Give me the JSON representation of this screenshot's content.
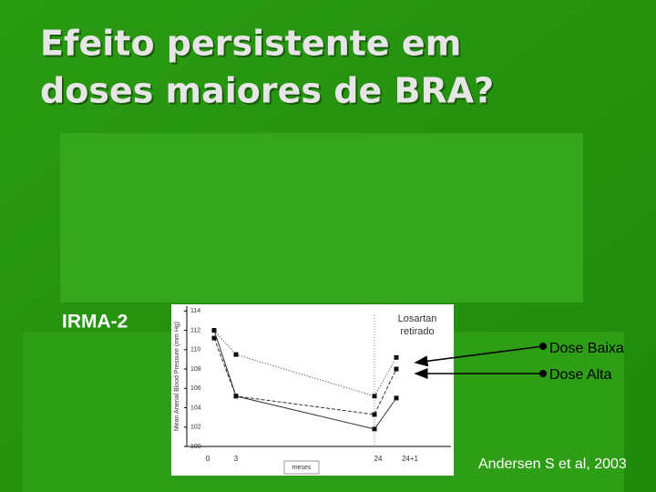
{
  "title_line1": "Efeito persistente em",
  "title_line2": "doses maiores de BRA?",
  "study_label": "IRMA-2",
  "legend": [
    "Dose Baixa",
    "Dose Alta"
  ],
  "citation": "Andersen S et al, 2003",
  "chart_data": {
    "type": "line",
    "y_label": "Mean Arterial Blood Pressure (mm Hg)",
    "x_label": "meses",
    "annotation": "Losartan retirado",
    "categories": [
      "0",
      "3",
      "24",
      "24+1"
    ],
    "series": [
      {
        "color": "#333333",
        "dash": "dotted",
        "values": [
          112,
          109.5,
          105.2,
          109.2
        ]
      },
      {
        "color": "#333333",
        "dash": "dashed",
        "values": [
          111.2,
          105.2,
          103.3,
          108
        ]
      },
      {
        "color": "#333333",
        "dash": "solid",
        "values": [
          112,
          105.2,
          101.8,
          105
        ]
      }
    ],
    "ylim": [
      100,
      114.5
    ],
    "yticks": [
      100,
      102,
      104,
      106,
      108,
      110,
      112,
      114
    ],
    "grid": false
  }
}
